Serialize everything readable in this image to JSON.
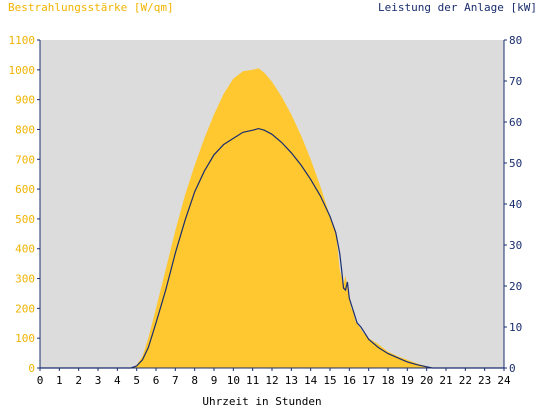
{
  "chart_data": {
    "type": "area",
    "left_title": "Bestrahlungsstärke [W/qm]",
    "right_title": "Leistung der Anlage [kW]",
    "xlabel": "Uhrzeit in Stunden",
    "xlim": [
      0,
      24
    ],
    "x_ticks": [
      "0",
      "1",
      "2",
      "3",
      "4",
      "5",
      "6",
      "7",
      "8",
      "9",
      "10",
      "11",
      "12",
      "13",
      "14",
      "15",
      "16",
      "17",
      "18",
      "19",
      "20",
      "21",
      "22",
      "23",
      "24"
    ],
    "ylim_left": [
      0,
      1100
    ],
    "ylim_right": [
      0,
      80
    ],
    "left_ticks": [
      "0",
      "100",
      "200",
      "300",
      "400",
      "500",
      "600",
      "700",
      "800",
      "900",
      "1000",
      "1100"
    ],
    "right_ticks": [
      "0",
      "10",
      "20",
      "30",
      "40",
      "50",
      "60",
      "70",
      "80"
    ],
    "grid": false,
    "colors": {
      "plot_background": "#dcdcdc",
      "irradiance_fill": "#ffc830",
      "power_line": "#1a2d6e",
      "left_axis_text": "#f0b400",
      "right_axis": "#1a2d6e"
    },
    "series": [
      {
        "axis": "left",
        "style": "area",
        "x": [
          0,
          4.7,
          5,
          5.3,
          5.6,
          6,
          6.5,
          7,
          7.5,
          8,
          8.5,
          9,
          9.5,
          10,
          10.5,
          11,
          11.3,
          11.6,
          12,
          12.5,
          13,
          13.5,
          14,
          14.5,
          15,
          15.3,
          15.5,
          15.7,
          15.8,
          15.9,
          16,
          16.1,
          16.2,
          16.3,
          16.5,
          16.7,
          17,
          17.5,
          18,
          18.5,
          19,
          19.5,
          20,
          20.3,
          24
        ],
        "y": [
          0,
          0,
          10,
          40,
          100,
          200,
          330,
          460,
          580,
          680,
          770,
          850,
          920,
          970,
          995,
          1000,
          1005,
          990,
          960,
          910,
          850,
          780,
          700,
          610,
          510,
          460,
          330,
          280,
          310,
          270,
          230,
          200,
          190,
          160,
          140,
          120,
          100,
          80,
          55,
          40,
          28,
          15,
          5,
          0,
          0
        ]
      },
      {
        "axis": "right",
        "style": "line",
        "x": [
          0,
          4.7,
          5,
          5.3,
          5.6,
          6,
          6.5,
          7,
          7.5,
          8,
          8.5,
          9,
          9.5,
          10,
          10.5,
          11,
          11.3,
          11.6,
          12,
          12.5,
          13,
          13.5,
          14,
          14.5,
          15,
          15.3,
          15.5,
          15.6,
          15.7,
          15.8,
          15.9,
          16,
          16.2,
          16.4,
          16.6,
          16.8,
          17,
          17.5,
          18,
          18.5,
          19,
          19.5,
          20,
          20.3,
          24
        ],
        "y": [
          0,
          0,
          0.5,
          2,
          5,
          11,
          19,
          28,
          36,
          43,
          48,
          52,
          54.5,
          56,
          57.5,
          58,
          58.4,
          58,
          57,
          55,
          52.5,
          49.5,
          46,
          42,
          37,
          33,
          28,
          24,
          19.5,
          19,
          21,
          17,
          14,
          11,
          10,
          8.5,
          7,
          5,
          3.5,
          2.5,
          1.5,
          0.8,
          0.3,
          0,
          0
        ]
      }
    ]
  }
}
